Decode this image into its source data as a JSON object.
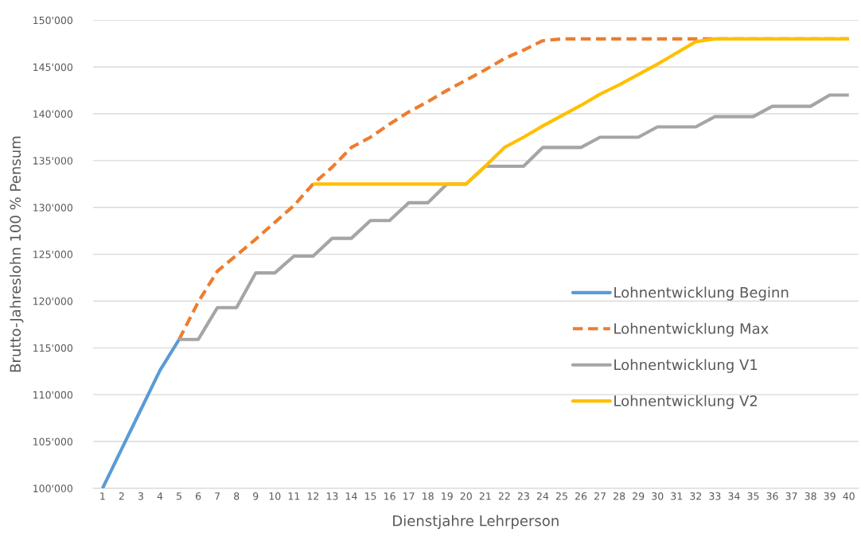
{
  "chart_data": {
    "type": "line",
    "xlabel": "Dienstjahre Lehrperson",
    "ylabel": "Brutto-Jahreslohn 100 % Pensum",
    "categories": [
      "1",
      "2",
      "3",
      "4",
      "5",
      "6",
      "7",
      "8",
      "9",
      "10",
      "11",
      "12",
      "13",
      "14",
      "15",
      "16",
      "17",
      "18",
      "19",
      "20",
      "21",
      "22",
      "23",
      "24",
      "25",
      "26",
      "27",
      "28",
      "29",
      "30",
      "31",
      "32",
      "33",
      "34",
      "35",
      "36",
      "37",
      "38",
      "39",
      "40"
    ],
    "ylim": [
      100000,
      150000
    ],
    "yticks": [
      {
        "value": 100000,
        "label": "100'000"
      },
      {
        "value": 105000,
        "label": "105'000"
      },
      {
        "value": 110000,
        "label": "110'000"
      },
      {
        "value": 115000,
        "label": "115'000"
      },
      {
        "value": 120000,
        "label": "120'000"
      },
      {
        "value": 125000,
        "label": "125'000"
      },
      {
        "value": 130000,
        "label": "130'000"
      },
      {
        "value": 135000,
        "label": "135'000"
      },
      {
        "value": 140000,
        "label": "140'000"
      },
      {
        "value": 145000,
        "label": "145'000"
      },
      {
        "value": 150000,
        "label": "150'000"
      }
    ],
    "grid": "y",
    "legend": "right",
    "series": [
      {
        "name": "Lohnentwicklung Beginn",
        "color": "#5b9bd5",
        "line_style": "solid",
        "values": [
          100000,
          104200,
          108400,
          112600,
          115900,
          null,
          null,
          null,
          null,
          null,
          null,
          null,
          null,
          null,
          null,
          null,
          null,
          null,
          null,
          null,
          null,
          null,
          null,
          null,
          null,
          null,
          null,
          null,
          null,
          null,
          null,
          null,
          null,
          null,
          null,
          null,
          null,
          null,
          null,
          null
        ]
      },
      {
        "name": "Lohnentwicklung Max",
        "color": "#ed7d31",
        "line_style": "dashed",
        "values": [
          null,
          null,
          null,
          null,
          115900,
          119900,
          123200,
          124900,
          126600,
          128400,
          130200,
          132500,
          134300,
          136400,
          137500,
          138900,
          140200,
          141300,
          142500,
          143600,
          144700,
          145900,
          146800,
          147800,
          148000,
          148000,
          148000,
          148000,
          148000,
          148000,
          148000,
          148000,
          148000,
          148000,
          148000,
          148000,
          148000,
          148000,
          148000,
          148000
        ]
      },
      {
        "name": "Lohnentwicklung V1",
        "color": "#a5a5a5",
        "line_style": "solid",
        "values": [
          null,
          null,
          null,
          null,
          115900,
          115900,
          119300,
          119300,
          123000,
          123000,
          124800,
          124800,
          126700,
          126700,
          128600,
          128600,
          130500,
          130500,
          132500,
          132500,
          134400,
          134400,
          134400,
          136400,
          136400,
          136400,
          137500,
          137500,
          137500,
          138600,
          138600,
          138600,
          139700,
          139700,
          139700,
          140800,
          140800,
          140800,
          142000,
          142000
        ]
      },
      {
        "name": "Lohnentwicklung V2",
        "color": "#ffc000",
        "line_style": "solid",
        "values": [
          null,
          null,
          null,
          null,
          null,
          null,
          null,
          null,
          null,
          null,
          null,
          132500,
          132500,
          132500,
          132500,
          132500,
          132500,
          132500,
          132500,
          132500,
          134400,
          136400,
          137500,
          138700,
          139800,
          140900,
          142100,
          143100,
          144200,
          145300,
          146500,
          147700,
          148000,
          148000,
          148000,
          148000,
          148000,
          148000,
          148000,
          148000
        ]
      }
    ]
  }
}
